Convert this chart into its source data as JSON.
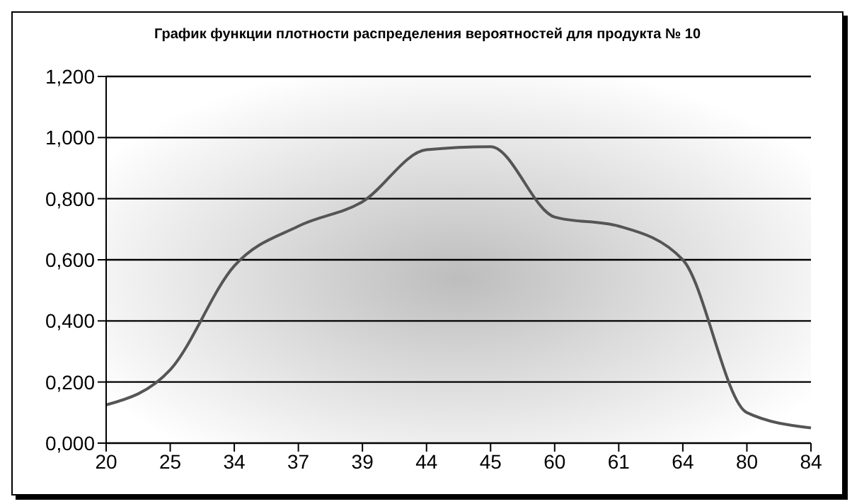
{
  "chart_data": {
    "type": "line",
    "title": "График функции плотности распределения вероятностей для продукта № 10",
    "categories": [
      "20",
      "25",
      "34",
      "37",
      "39",
      "44",
      "45",
      "60",
      "61",
      "64",
      "80",
      "84"
    ],
    "series": [
      {
        "color": "#555555",
        "values": [
          0.125,
          0.24,
          0.58,
          0.71,
          0.79,
          0.96,
          0.97,
          0.74,
          0.71,
          0.6,
          0.1,
          0.05
        ]
      }
    ],
    "ylim": [
      0,
      1.2
    ],
    "yticks": [
      {
        "value": 0,
        "label": "0,000"
      },
      {
        "value": 0.2,
        "label": "0,200"
      },
      {
        "value": 0.4,
        "label": "0,400"
      },
      {
        "value": 0.6,
        "label": "0,600"
      },
      {
        "value": 0.8,
        "label": "0,800"
      },
      {
        "value": 1,
        "label": "1,000"
      },
      {
        "value": 1.2,
        "label": "1,200"
      }
    ],
    "grid": "y",
    "legend": false,
    "marker": "none",
    "line_style": "solid"
  }
}
